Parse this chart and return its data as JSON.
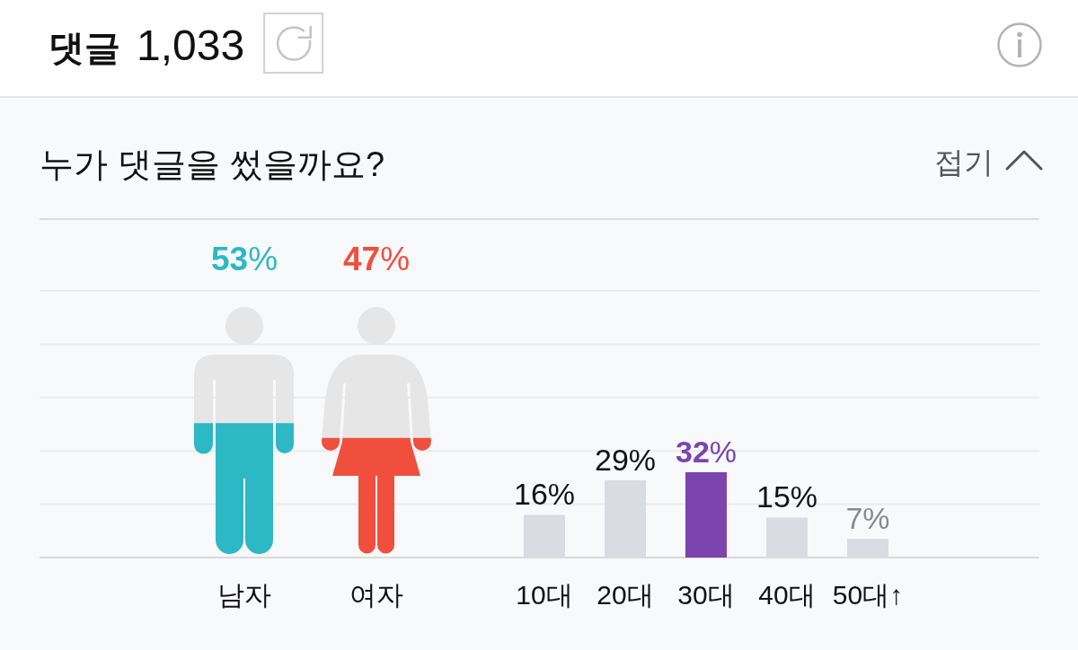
{
  "chart_data": [
    {
      "type": "other",
      "title": "누가 댓글을 썼을까요?",
      "annotations": [
        "댓글",
        "1,033",
        "접기"
      ],
      "categories": [
        "남자",
        "여자"
      ],
      "values": [
        53,
        47
      ],
      "colors": [
        "#2cb8c4",
        "#f04f3e"
      ],
      "value_labels": [
        "53%",
        "47%"
      ]
    },
    {
      "type": "bar",
      "categories": [
        "10대",
        "20대",
        "30대",
        "40대",
        "50대↑"
      ],
      "values": [
        16,
        29,
        32,
        15,
        7
      ],
      "colors": [
        "#d9dce0",
        "#d9dce0",
        "#7b44ae",
        "#d9dce0",
        "#d9dce0"
      ],
      "value_labels": [
        "16%",
        "29%",
        "32%",
        "15%",
        "7%"
      ],
      "ylim": [
        0,
        100
      ],
      "yticks": [
        {
          "value": 0,
          "label": null
        },
        {
          "value": 20,
          "label": null
        },
        {
          "value": 40,
          "label": null
        },
        {
          "value": 60,
          "label": null
        },
        {
          "value": 80,
          "label": null
        },
        {
          "value": 100,
          "label": null
        }
      ],
      "grid": "y",
      "tick_labels": "x"
    }
  ]
}
